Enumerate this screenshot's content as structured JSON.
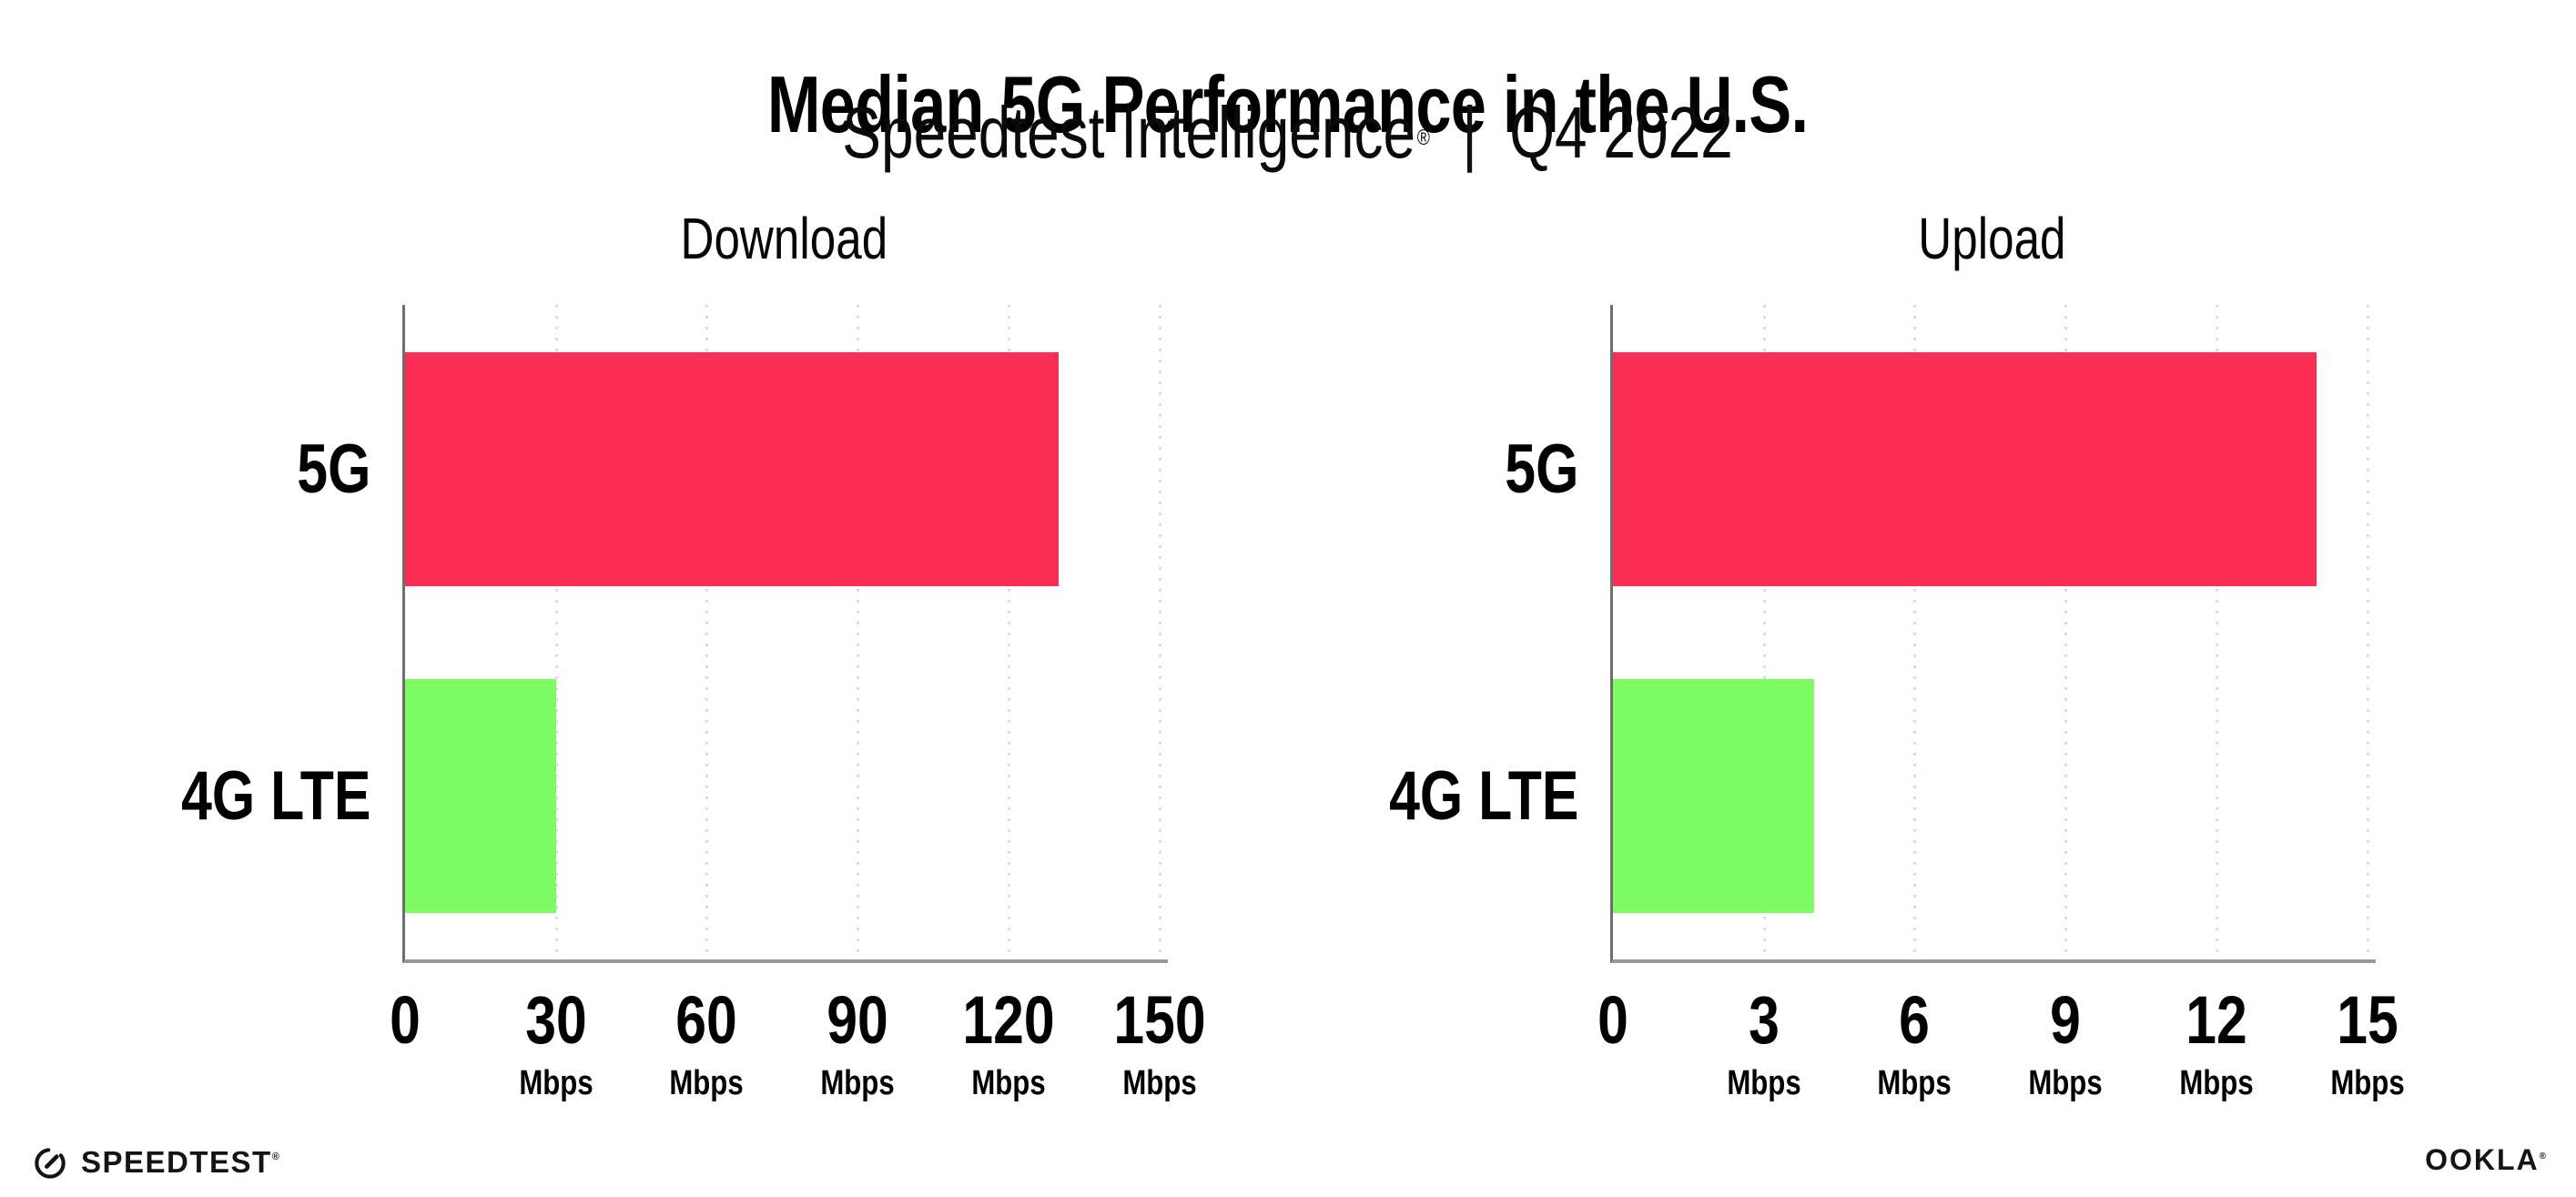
{
  "header": {
    "title": "Median 5G Performance in the U.S.",
    "subtitle_brand": "Speedtest Intelligence",
    "subtitle_reg": "®",
    "subtitle_sep": "|",
    "subtitle_period": "Q4 2022"
  },
  "chart_data": [
    {
      "type": "bar",
      "orientation": "horizontal",
      "title": "Download",
      "categories": [
        "5G",
        "4G LTE"
      ],
      "values": [
        130,
        30
      ],
      "unit": "Mbps",
      "tick_suffix": "Mbps",
      "xlim": [
        0,
        150
      ],
      "xticks": [
        0,
        30,
        60,
        90,
        120,
        150
      ],
      "bar_colors": [
        "#FC2D55",
        "#7EFC64"
      ],
      "grid": "vertical-dotted",
      "legend": "none"
    },
    {
      "type": "bar",
      "orientation": "horizontal",
      "title": "Upload",
      "categories": [
        "5G",
        "4G LTE"
      ],
      "values": [
        14,
        4
      ],
      "unit": "Mbps",
      "tick_suffix": "Mbps",
      "xlim": [
        0,
        15
      ],
      "xticks": [
        0,
        3,
        6,
        9,
        12,
        15
      ],
      "bar_colors": [
        "#FC2D55",
        "#7EFC64"
      ],
      "grid": "vertical-dotted",
      "legend": "none"
    }
  ],
  "footer": {
    "speedtest_label": "SPEEDTEST",
    "speedtest_mark": "®",
    "ookla_label": "OOKLA",
    "ookla_mark": "®"
  },
  "colors": {
    "bar_5g": "#FC2D55",
    "bar_4g_lte": "#7EFC64",
    "gridline": "#DBDBE5",
    "x_axis": "#999999",
    "y_axis": "#6E6E6E",
    "text": "#000000"
  }
}
